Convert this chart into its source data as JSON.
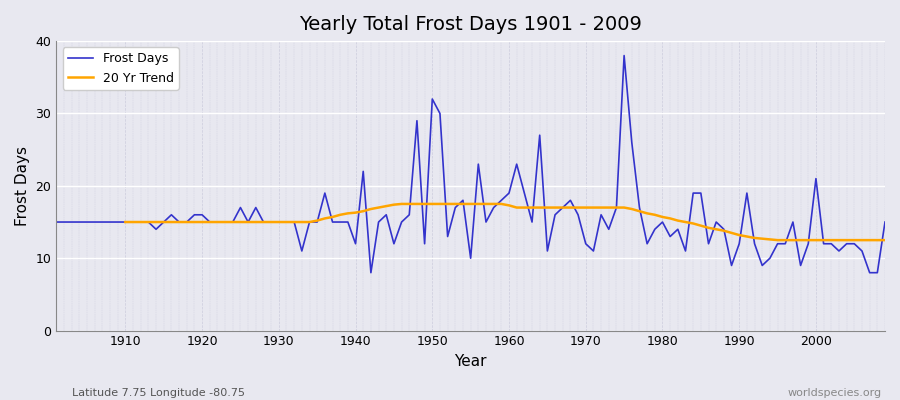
{
  "title": "Yearly Total Frost Days 1901 - 2009",
  "xlabel": "Year",
  "ylabel": "Frost Days",
  "subtitle_left": "Latitude 7.75 Longitude -80.75",
  "subtitle_right": "worldspecies.org",
  "ylim": [
    0,
    40
  ],
  "line_color": "#3333cc",
  "trend_color": "#FFA500",
  "bg_color": "#e8e8f0",
  "legend_frost": "Frost Days",
  "legend_trend": "20 Yr Trend",
  "years": [
    1901,
    1902,
    1903,
    1904,
    1905,
    1906,
    1907,
    1908,
    1909,
    1910,
    1911,
    1912,
    1913,
    1914,
    1915,
    1916,
    1917,
    1918,
    1919,
    1920,
    1921,
    1922,
    1923,
    1924,
    1925,
    1926,
    1927,
    1928,
    1929,
    1930,
    1931,
    1932,
    1933,
    1934,
    1935,
    1936,
    1937,
    1938,
    1939,
    1940,
    1941,
    1942,
    1943,
    1944,
    1945,
    1946,
    1947,
    1948,
    1949,
    1950,
    1951,
    1952,
    1953,
    1954,
    1955,
    1956,
    1957,
    1958,
    1959,
    1960,
    1961,
    1962,
    1963,
    1964,
    1965,
    1966,
    1967,
    1968,
    1969,
    1970,
    1971,
    1972,
    1973,
    1974,
    1975,
    1976,
    1977,
    1978,
    1979,
    1980,
    1981,
    1982,
    1983,
    1984,
    1985,
    1986,
    1987,
    1988,
    1989,
    1990,
    1991,
    1992,
    1993,
    1994,
    1995,
    1996,
    1997,
    1998,
    1999,
    2000,
    2001,
    2002,
    2003,
    2004,
    2005,
    2006,
    2007,
    2008,
    2009
  ],
  "frost_days": [
    15,
    15,
    15,
    15,
    15,
    15,
    15,
    15,
    15,
    15,
    15,
    15,
    15,
    14,
    15,
    16,
    15,
    15,
    16,
    16,
    15,
    15,
    15,
    15,
    17,
    15,
    17,
    15,
    15,
    15,
    15,
    15,
    11,
    15,
    15,
    19,
    15,
    15,
    15,
    12,
    22,
    8,
    15,
    16,
    12,
    15,
    16,
    29,
    12,
    32,
    30,
    13,
    17,
    18,
    10,
    23,
    15,
    17,
    18,
    19,
    23,
    19,
    15,
    27,
    11,
    16,
    17,
    18,
    16,
    12,
    11,
    16,
    14,
    17,
    38,
    26,
    17,
    12,
    14,
    15,
    13,
    14,
    11,
    19,
    19,
    12,
    15,
    14,
    9,
    12,
    19,
    12,
    9,
    10,
    12,
    12,
    15,
    9,
    12,
    21,
    12,
    12,
    11,
    12,
    12,
    11,
    8,
    8,
    15
  ],
  "trend_years": [
    1910,
    1911,
    1912,
    1913,
    1914,
    1915,
    1916,
    1917,
    1918,
    1919,
    1920,
    1921,
    1922,
    1923,
    1924,
    1925,
    1926,
    1927,
    1928,
    1929,
    1930,
    1931,
    1932,
    1933,
    1934,
    1935,
    1936,
    1937,
    1938,
    1939,
    1940,
    1941,
    1942,
    1943,
    1944,
    1945,
    1946,
    1947,
    1948,
    1949,
    1950,
    1951,
    1952,
    1953,
    1954,
    1955,
    1956,
    1957,
    1958,
    1959,
    1960,
    1961,
    1962,
    1963,
    1964,
    1965,
    1966,
    1967,
    1968,
    1969,
    1970,
    1971,
    1972,
    1973,
    1974,
    1975,
    1976,
    1977,
    1978,
    1979,
    1980,
    1981,
    1982,
    1983,
    1984,
    1985,
    1986,
    1987,
    1988,
    1989,
    1990,
    1991,
    1992,
    1993,
    1994,
    1995,
    1996,
    1997,
    1998,
    1999,
    2000,
    2001,
    2002,
    2003,
    2004,
    2005,
    2006,
    2007,
    2008,
    2009
  ],
  "trend_values": [
    15.0,
    15.0,
    15.0,
    15.0,
    15.0,
    15.0,
    15.0,
    15.0,
    15.0,
    15.0,
    15.0,
    15.0,
    15.0,
    15.0,
    15.0,
    15.0,
    15.0,
    15.0,
    15.0,
    15.0,
    15.0,
    15.0,
    15.0,
    15.0,
    15.0,
    15.2,
    15.5,
    15.7,
    16.0,
    16.2,
    16.3,
    16.5,
    16.8,
    17.0,
    17.2,
    17.4,
    17.5,
    17.5,
    17.5,
    17.5,
    17.5,
    17.5,
    17.5,
    17.5,
    17.5,
    17.5,
    17.5,
    17.5,
    17.5,
    17.5,
    17.3,
    17.0,
    17.0,
    17.0,
    17.0,
    17.0,
    17.0,
    17.0,
    17.0,
    17.0,
    17.0,
    17.0,
    17.0,
    17.0,
    17.0,
    17.0,
    16.8,
    16.5,
    16.2,
    16.0,
    15.7,
    15.5,
    15.2,
    15.0,
    14.8,
    14.5,
    14.2,
    14.0,
    13.8,
    13.5,
    13.2,
    13.0,
    12.8,
    12.7,
    12.6,
    12.5,
    12.5,
    12.5,
    12.5,
    12.5,
    12.5,
    12.5,
    12.5,
    12.5,
    12.5,
    12.5,
    12.5,
    12.5,
    12.5,
    12.5
  ]
}
